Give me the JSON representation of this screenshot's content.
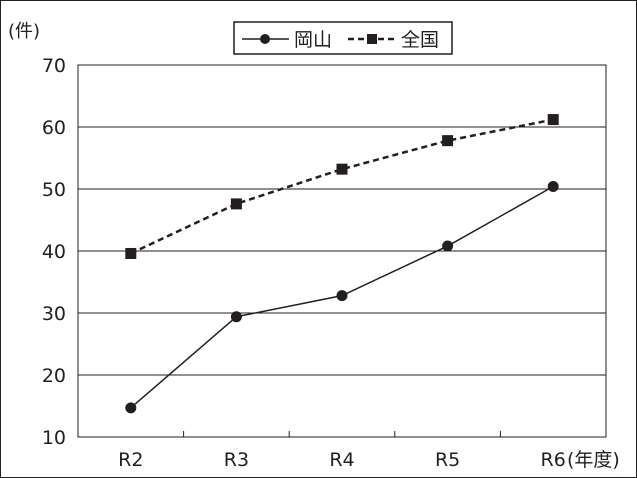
{
  "chart_data": {
    "type": "line",
    "categories": [
      "R2",
      "R3",
      "R4",
      "R5",
      "R6"
    ],
    "series": [
      {
        "name": "岡山",
        "values": [
          14.7,
          29.4,
          32.8,
          40.8,
          50.4
        ],
        "marker": "circle",
        "dash": "solid",
        "color": "#231f20"
      },
      {
        "name": "全国",
        "values": [
          39.6,
          47.6,
          53.2,
          57.8,
          61.2
        ],
        "marker": "square",
        "dash": "dashed",
        "color": "#231f20"
      }
    ],
    "ylabel": "(件)",
    "xlabel": "(年度)",
    "ylim": [
      10,
      70
    ],
    "yticks": [
      10,
      20,
      30,
      40,
      50,
      60,
      70
    ],
    "grid": true,
    "legend_position": "top-center"
  }
}
